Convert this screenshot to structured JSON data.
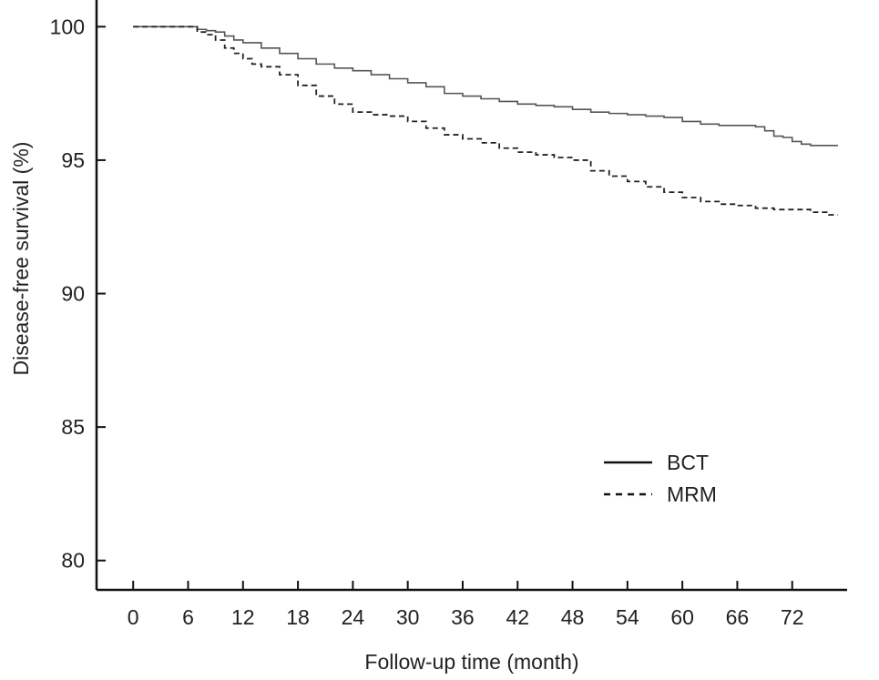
{
  "chart_data": {
    "type": "line",
    "title": "",
    "xlabel": "Follow-up time (month)",
    "ylabel": "Disease-free survival (%)",
    "xlim": [
      -4,
      78
    ],
    "ylim": [
      78.9,
      101
    ],
    "xticks": [
      0,
      6,
      12,
      18,
      24,
      30,
      36,
      42,
      48,
      54,
      60,
      66,
      72
    ],
    "yticks": [
      80,
      85,
      90,
      95,
      100
    ],
    "grid": false,
    "legend_position": "lower-right",
    "series": [
      {
        "name": "BCT",
        "style": "solid",
        "color": "#555555",
        "x": [
          0,
          6,
          7,
          8,
          9,
          10,
          11,
          12,
          14,
          16,
          18,
          20,
          22,
          24,
          26,
          28,
          30,
          32,
          34,
          36,
          38,
          40,
          42,
          44,
          46,
          48,
          50,
          52,
          54,
          56,
          58,
          60,
          62,
          64,
          66,
          68,
          69,
          70,
          71,
          72,
          73,
          74,
          76,
          77
        ],
        "y": [
          100,
          100,
          99.9,
          99.85,
          99.8,
          99.65,
          99.5,
          99.4,
          99.2,
          99.0,
          98.8,
          98.6,
          98.45,
          98.35,
          98.2,
          98.05,
          97.9,
          97.75,
          97.5,
          97.4,
          97.3,
          97.2,
          97.1,
          97.05,
          97.0,
          96.9,
          96.8,
          96.75,
          96.7,
          96.65,
          96.6,
          96.45,
          96.35,
          96.3,
          96.3,
          96.25,
          96.1,
          95.9,
          95.85,
          95.7,
          95.6,
          95.55,
          95.55,
          95.55
        ]
      },
      {
        "name": "MRM",
        "style": "dashed",
        "color": "#222222",
        "x": [
          0,
          6,
          7,
          8,
          9,
          10,
          11,
          12,
          13,
          14,
          16,
          18,
          20,
          22,
          24,
          26,
          28,
          30,
          32,
          34,
          36,
          38,
          40,
          42,
          44,
          46,
          48,
          50,
          52,
          54,
          56,
          58,
          60,
          62,
          64,
          66,
          68,
          70,
          72,
          74,
          76,
          77
        ],
        "y": [
          100,
          100,
          99.8,
          99.7,
          99.5,
          99.2,
          99.0,
          98.8,
          98.6,
          98.5,
          98.2,
          97.8,
          97.4,
          97.1,
          96.8,
          96.7,
          96.65,
          96.45,
          96.2,
          95.95,
          95.8,
          95.65,
          95.45,
          95.3,
          95.2,
          95.1,
          95.0,
          94.6,
          94.4,
          94.2,
          94.0,
          93.8,
          93.6,
          93.45,
          93.35,
          93.3,
          93.2,
          93.15,
          93.15,
          93.05,
          92.95,
          92.95
        ]
      }
    ]
  }
}
